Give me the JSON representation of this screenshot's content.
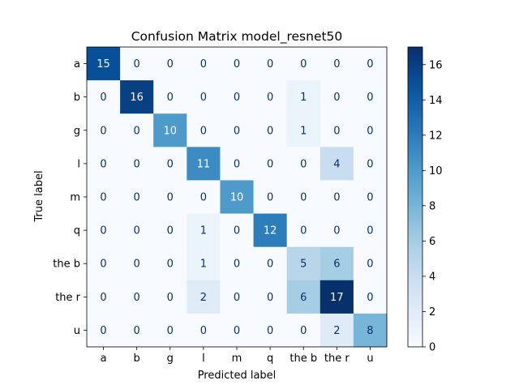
{
  "chart_data": {
    "type": "heatmap",
    "title": "Confusion Matrix model_resnet50",
    "xlabel": "Predicted label",
    "ylabel": "True label",
    "x_categories": [
      "a",
      "b",
      "g",
      "l",
      "m",
      "q",
      "the b",
      "the r",
      "u"
    ],
    "y_categories": [
      "a",
      "b",
      "g",
      "l",
      "m",
      "q",
      "the b",
      "the r",
      "u"
    ],
    "values": [
      [
        15,
        0,
        0,
        0,
        0,
        0,
        0,
        0,
        0
      ],
      [
        0,
        16,
        0,
        0,
        0,
        0,
        1,
        0,
        0
      ],
      [
        0,
        0,
        10,
        0,
        0,
        0,
        1,
        0,
        0
      ],
      [
        0,
        0,
        0,
        11,
        0,
        0,
        0,
        4,
        0
      ],
      [
        0,
        0,
        0,
        0,
        10,
        0,
        0,
        0,
        0
      ],
      [
        0,
        0,
        0,
        1,
        0,
        12,
        0,
        0,
        0
      ],
      [
        0,
        0,
        0,
        1,
        0,
        0,
        5,
        6,
        0
      ],
      [
        0,
        0,
        0,
        2,
        0,
        0,
        6,
        17,
        0
      ],
      [
        0,
        0,
        0,
        0,
        0,
        0,
        0,
        2,
        8
      ]
    ],
    "colormap": "Blues",
    "colorbar": {
      "min": 0,
      "max": 17,
      "ticks": [
        0,
        2,
        4,
        6,
        8,
        10,
        12,
        14,
        16
      ]
    }
  }
}
